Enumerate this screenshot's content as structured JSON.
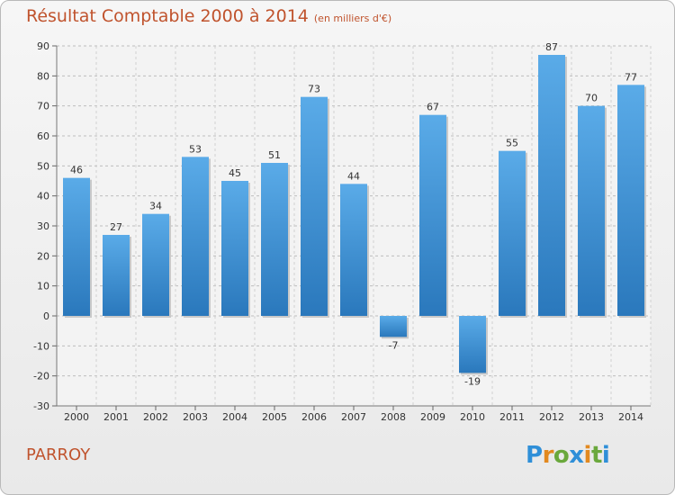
{
  "header": {
    "title": "Résultat Comptable 2000 à 2014",
    "subtitle": "(en milliers d'€)"
  },
  "footer": {
    "town": "PARROY",
    "logo_text": "Proxiti",
    "logo_colors": [
      "#2f8fd8",
      "#e2891f",
      "#6aa83c",
      "#2f8fd8",
      "#e2891f",
      "#6aa83c",
      "#2f8fd8"
    ]
  },
  "chart_data": {
    "type": "bar",
    "categories": [
      "2000",
      "2001",
      "2002",
      "2003",
      "2004",
      "2005",
      "2006",
      "2007",
      "2008",
      "2009",
      "2010",
      "2011",
      "2012",
      "2013",
      "2014"
    ],
    "values": [
      46,
      27,
      34,
      53,
      45,
      51,
      73,
      44,
      -7,
      67,
      -19,
      55,
      87,
      70,
      77
    ],
    "data_labels": [
      "46",
      "27",
      "34",
      "53",
      "45",
      "51",
      "73",
      "44",
      "-7",
      "67",
      "-19",
      "55",
      "87",
      "70",
      "77"
    ],
    "ylim": [
      -30,
      90
    ],
    "yticks": [
      -30,
      -20,
      -10,
      0,
      10,
      20,
      30,
      40,
      50,
      60,
      70,
      80,
      90
    ],
    "ytick_labels": [
      "-30",
      "-20",
      "-10",
      "0",
      "10",
      "20",
      "30",
      "40",
      "50",
      "60",
      "70",
      "80",
      "90"
    ],
    "grid": true,
    "bar_color_top": "#5aabe8",
    "bar_color_bottom": "#2a78bc"
  }
}
